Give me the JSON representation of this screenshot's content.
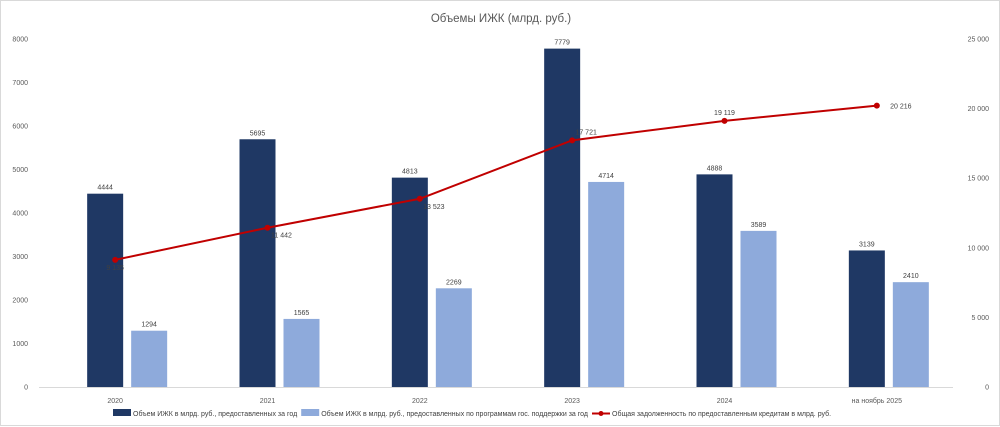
{
  "chart_data": {
    "type": "bar",
    "title": "Объемы ИЖК (млрд. руб.)",
    "categories": [
      "2020",
      "2021",
      "2022",
      "2023",
      "2024",
      "на ноябрь 2025"
    ],
    "ylim": [
      0,
      8000
    ],
    "yticks": [
      "0",
      "1000",
      "2000",
      "3000",
      "4000",
      "5000",
      "6000",
      "7000",
      "8000"
    ],
    "y2lim": [
      0,
      25000
    ],
    "y2ticks": [
      "0",
      "5 000",
      "10 000",
      "15 000",
      "20 000",
      "25 000"
    ],
    "series": [
      {
        "name": "Объем ИЖК в млрд. руб., предоставленных за год",
        "type": "bar",
        "axis": "left",
        "color": "#1f3864",
        "values": [
          4444,
          5695,
          4813,
          7779,
          4888,
          3139
        ],
        "labels": [
          "4444",
          "5695",
          "4813",
          "7779",
          "4888",
          "3139"
        ]
      },
      {
        "name": "Объем ИЖК в млрд. руб., предоставленных по программам гос. поддержки за год",
        "type": "bar",
        "axis": "left",
        "color": "#8eaadb",
        "values": [
          1294,
          1565,
          2269,
          4714,
          3589,
          2410
        ],
        "labels": [
          "1294",
          "1565",
          "2269",
          "4714",
          "3589",
          "2410"
        ]
      },
      {
        "name": "Общая задолженность по предоставленным кредитам в млрд. руб.",
        "type": "line",
        "axis": "right",
        "color": "#c00000",
        "values": [
          9135,
          11442,
          13523,
          17721,
          19119,
          20216
        ],
        "labels": [
          "9 135",
          "11 442",
          "13 523",
          "17 721",
          "19 119",
          "20 216"
        ]
      }
    ],
    "legend": "bottom",
    "grid": false
  }
}
